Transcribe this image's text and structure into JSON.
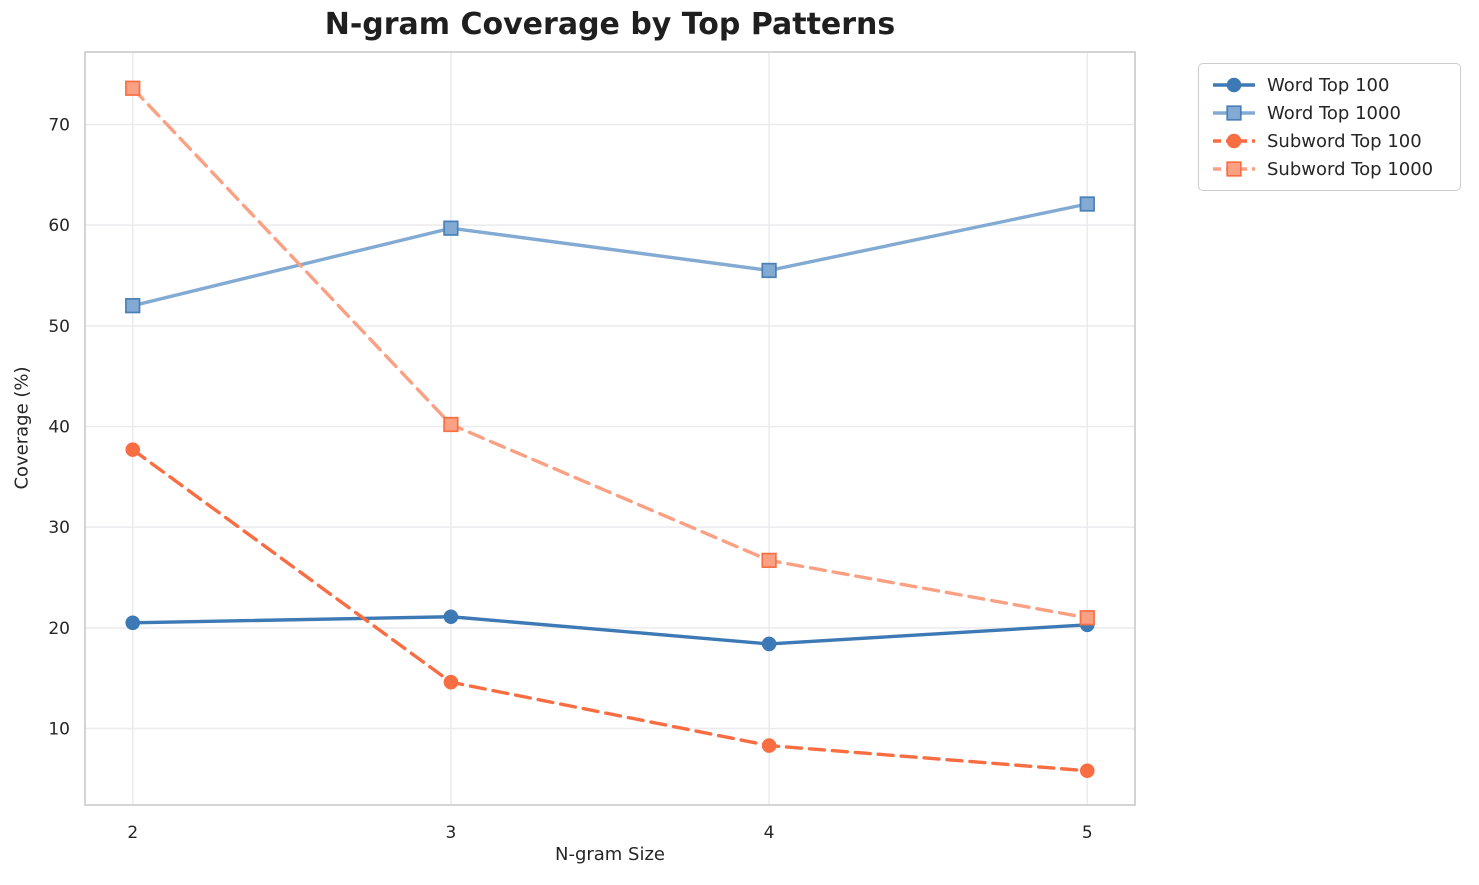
{
  "chart_data": {
    "type": "line",
    "title": "N-gram Coverage by Top Patterns",
    "xlabel": "N-gram Size",
    "ylabel": "Coverage (%)",
    "x": [
      2,
      3,
      4,
      5
    ],
    "xticks": [
      "2",
      "3",
      "4",
      "5"
    ],
    "yticks": [
      10,
      20,
      30,
      40,
      50,
      60,
      70
    ],
    "xlim": [
      1.85,
      5.15
    ],
    "ylim": [
      2.4,
      77.2
    ],
    "grid": true,
    "legend_position": "outside-upper-right",
    "series": [
      {
        "name": "Word Top 100",
        "values": [
          20.5,
          21.1,
          18.4,
          20.3
        ],
        "color": "#3d7ab5",
        "edge_color": "#3d7ab5",
        "line_style": "solid",
        "marker": "circle"
      },
      {
        "name": "Word Top 1000",
        "values": [
          52.0,
          59.7,
          55.5,
          62.1
        ],
        "color": "#83aad2",
        "edge_color": "#4a80b7",
        "line_style": "solid",
        "marker": "square"
      },
      {
        "name": "Subword Top 100",
        "values": [
          37.7,
          14.6,
          8.3,
          5.8
        ],
        "color": "#f96d42",
        "edge_color": "#f96d42",
        "line_style": "dashed",
        "marker": "circle"
      },
      {
        "name": "Subword Top 1000",
        "values": [
          73.6,
          40.2,
          26.7,
          21.0
        ],
        "color": "#fba183",
        "edge_color": "#f96f44",
        "line_style": "dashed",
        "marker": "square"
      }
    ],
    "theme": {
      "grid_color": "#ebebee",
      "spine_color": "#c9c9c9",
      "text_color": "#262626",
      "background": "#ffffff"
    }
  }
}
